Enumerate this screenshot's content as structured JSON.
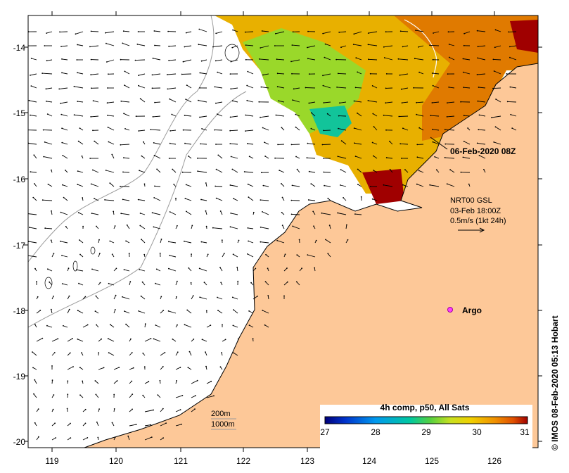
{
  "map": {
    "lon_ticks": [
      "119",
      "120",
      "121",
      "122",
      "123",
      "124",
      "125",
      "126"
    ],
    "lat_ticks": [
      "-14",
      "-15",
      "-16",
      "-17",
      "-18",
      "-19",
      "-20"
    ],
    "lon_range": [
      118.6,
      126.7
    ],
    "lat_range": [
      -20.1,
      -13.5
    ],
    "colors": {
      "land": "#FDC898",
      "coast": "#000000",
      "isobath": "#9a9a9a",
      "frame": "#000000"
    }
  },
  "annotations": {
    "timestamp": "06-Feb-2020 08Z",
    "current_title": "NRT00 GSL",
    "current_time": "03-Feb 18:00Z",
    "current_scale": "0.5m/s (1kt 24h)",
    "argo_label": "Argo",
    "depth_200": "200m",
    "depth_1000": "1000m",
    "credit": "IMOS 08-Feb-2020 05:13 Hobart",
    "copyright_icon": "copyright-icon"
  },
  "colorbar": {
    "title": "4h comp, p50, All Sats",
    "ticks": [
      "27",
      "28",
      "29",
      "30",
      "31"
    ],
    "range": [
      27,
      31
    ],
    "colors": [
      "#00007a",
      "#0033cc",
      "#0099ee",
      "#00c8a0",
      "#55d040",
      "#c8e020",
      "#f0d000",
      "#f09000",
      "#e05000",
      "#a00000"
    ]
  }
}
